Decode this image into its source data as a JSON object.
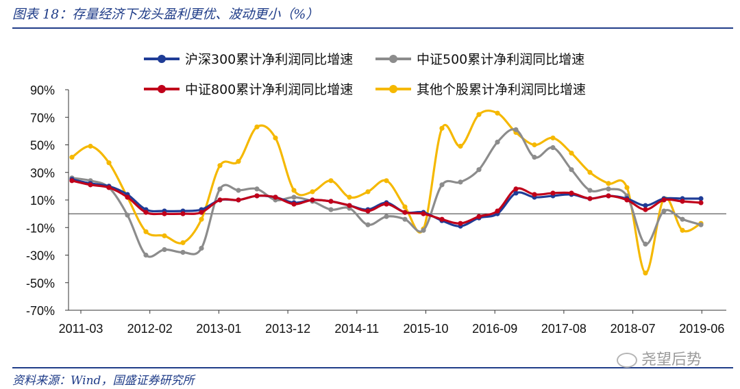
{
  "header": {
    "title": "图表 18：存量经济下龙头盈利更优、波动更小（%）"
  },
  "footer": {
    "source": "资料来源：Wind，国盛证券研究所"
  },
  "watermark": {
    "text": "尧望后势",
    "icon": "wechat-icon"
  },
  "chart_data": {
    "type": "line",
    "title": "",
    "xlabel": "",
    "ylabel": "",
    "ylim": [
      -70,
      90
    ],
    "yticks": [
      90,
      70,
      50,
      30,
      10,
      -10,
      -30,
      -50,
      -70
    ],
    "ytick_labels": [
      "90%",
      "70%",
      "50%",
      "30%",
      "10%",
      "-10%",
      "-30%",
      "-50%",
      "-70%"
    ],
    "x_labels": [
      "2011-03",
      "2012-02",
      "2013-01",
      "2013-12",
      "2014-11",
      "2015-10",
      "2016-09",
      "2017-08",
      "2018-07",
      "2019-06"
    ],
    "x": [
      "2011-03",
      "2011-06",
      "2011-09",
      "2011-12",
      "2012-03",
      "2012-06",
      "2012-09",
      "2012-12",
      "2013-03",
      "2013-06",
      "2013-09",
      "2013-12",
      "2014-03",
      "2014-06",
      "2014-09",
      "2014-12",
      "2015-03",
      "2015-06",
      "2015-09",
      "2015-12",
      "2016-03",
      "2016-06",
      "2016-09",
      "2016-12",
      "2017-03",
      "2017-06",
      "2017-09",
      "2017-12",
      "2018-03",
      "2018-06",
      "2018-09",
      "2018-12",
      "2019-03",
      "2019-06",
      "2019-09"
    ],
    "legend_position": "top",
    "series": [
      {
        "name": "沪深300累计净利润同比增速",
        "color": "#1f3c96",
        "values": [
          25,
          22,
          20,
          14,
          3,
          2,
          2,
          3,
          10,
          10,
          13,
          12,
          8,
          10,
          9,
          6,
          3,
          8,
          1,
          1,
          -5,
          -9,
          -3,
          0,
          15,
          12,
          13,
          14,
          11,
          13,
          11,
          6,
          11,
          11,
          11
        ]
      },
      {
        "name": "中证500累计净利润同比增速",
        "color": "#8c8c8c",
        "values": [
          26,
          24,
          19,
          -1,
          -30,
          -26,
          -28,
          -25,
          18,
          17,
          18,
          10,
          12,
          9,
          3,
          4,
          -8,
          -2,
          -4,
          -12,
          21,
          23,
          32,
          52,
          61,
          41,
          48,
          32,
          17,
          18,
          13,
          -22,
          2,
          -4,
          -8
        ]
      },
      {
        "name": "中证800累计净利润同比增速",
        "color": "#c0001a",
        "values": [
          24,
          21,
          19,
          12,
          1,
          0,
          0,
          1,
          10,
          10,
          13,
          12,
          7,
          10,
          9,
          6,
          2,
          7,
          1,
          0,
          -4,
          -7,
          -2,
          2,
          18,
          14,
          15,
          15,
          11,
          13,
          10,
          3,
          10,
          9,
          8
        ]
      },
      {
        "name": "其他个股累计净利润同比增速",
        "color": "#f5b800",
        "values": [
          41,
          49,
          37,
          12,
          -13,
          -16,
          -21,
          -4,
          35,
          38,
          63,
          55,
          17,
          16,
          24,
          12,
          16,
          24,
          5,
          -11,
          62,
          49,
          72,
          73,
          59,
          50,
          55,
          44,
          30,
          22,
          19,
          -43,
          11,
          -12,
          -7
        ]
      }
    ]
  }
}
